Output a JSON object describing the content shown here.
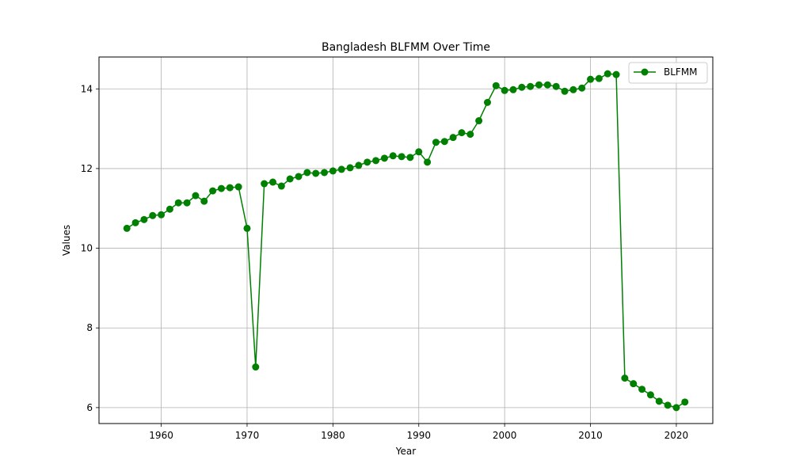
{
  "chart_data": {
    "type": "line",
    "title": "Bangladesh BLFMM Over Time",
    "xlabel": "Year",
    "ylabel": "Values",
    "xlim": [
      1952.75,
      2024.25
    ],
    "ylim": [
      5.6,
      14.8
    ],
    "xticks": [
      1960,
      1970,
      1980,
      1990,
      2000,
      2010,
      2020
    ],
    "yticks": [
      6,
      8,
      10,
      12,
      14
    ],
    "grid": true,
    "legend_position": "top-right",
    "colors": {
      "series": "#008000",
      "grid": "#b0b0b0",
      "axes": "#000000"
    },
    "series": [
      {
        "name": "BLFMM",
        "x": [
          1956,
          1957,
          1958,
          1959,
          1960,
          1961,
          1962,
          1963,
          1964,
          1965,
          1966,
          1967,
          1968,
          1969,
          1970,
          1971,
          1972,
          1973,
          1974,
          1975,
          1976,
          1977,
          1978,
          1979,
          1980,
          1981,
          1982,
          1983,
          1984,
          1985,
          1986,
          1987,
          1988,
          1989,
          1990,
          1991,
          1992,
          1993,
          1994,
          1995,
          1996,
          1997,
          1998,
          1999,
          2000,
          2001,
          2002,
          2003,
          2004,
          2005,
          2006,
          2007,
          2008,
          2009,
          2010,
          2011,
          2012,
          2013,
          2014,
          2015,
          2016,
          2017,
          2018,
          2019,
          2020,
          2021
        ],
        "y": [
          10.5,
          10.64,
          10.72,
          10.82,
          10.84,
          10.98,
          11.14,
          11.14,
          11.32,
          11.18,
          11.44,
          11.5,
          11.52,
          11.54,
          10.5,
          7.02,
          11.62,
          11.66,
          11.56,
          11.74,
          11.8,
          11.9,
          11.88,
          11.9,
          11.94,
          11.98,
          12.02,
          12.08,
          12.16,
          12.2,
          12.26,
          12.32,
          12.3,
          12.28,
          12.42,
          12.16,
          12.66,
          12.68,
          12.78,
          12.9,
          12.86,
          13.2,
          13.66,
          14.08,
          13.96,
          13.98,
          14.04,
          14.06,
          14.1,
          14.1,
          14.06,
          13.94,
          13.98,
          14.02,
          14.24,
          14.26,
          14.38,
          14.36,
          6.74,
          6.6,
          6.46,
          6.32,
          6.16,
          6.06,
          6.0,
          6.14
        ]
      }
    ]
  }
}
